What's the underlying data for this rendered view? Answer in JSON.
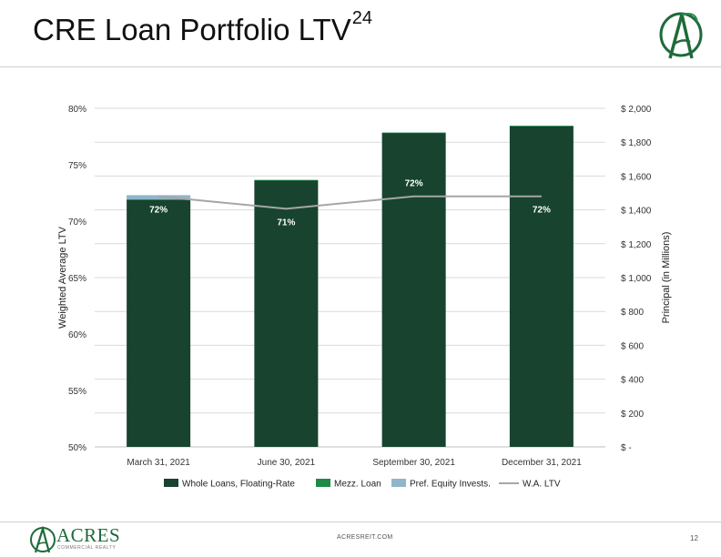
{
  "page": {
    "title": "CRE Loan Portfolio LTV",
    "title_superscript": "24",
    "footer_url": "ACRESREIT.COM",
    "page_number": "12",
    "brand_name": "ACRES",
    "brand_subtitle": "COMMERCIAL REALTY"
  },
  "colors": {
    "whole_loans": "#17432f",
    "mezz_loan": "#1f8a48",
    "pref_equity": "#8fb6c9",
    "wa_ltv": "#a6a6a6",
    "gridline": "#d9d9d9",
    "brand_green": "#1d6b3a"
  },
  "chart_data": {
    "type": "bar",
    "stacked": true,
    "categories": [
      "March 31, 2021",
      "June 30, 2021",
      "September 30, 2021",
      "December 31, 2021"
    ],
    "series": [
      {
        "name": "Whole Loans, Floating-Rate",
        "axis": "right",
        "values": [
          1460,
          1575,
          1855,
          1895
        ]
      },
      {
        "name": "Mezz. Loan",
        "axis": "right",
        "values": [
          2,
          2,
          2,
          2
        ]
      },
      {
        "name": "Pref. Equity Invests.",
        "axis": "right",
        "values": [
          25,
          0,
          0,
          0
        ]
      },
      {
        "name": "W.A. LTV",
        "type": "line",
        "axis": "left",
        "values": [
          72,
          71,
          72,
          72
        ]
      }
    ],
    "line_points": [
      72.2,
      71.1,
      72.2,
      72.2
    ],
    "ltv_labels": [
      "72%",
      "71%",
      "72%",
      "72%"
    ],
    "left_axis": {
      "label": "Weighted Average LTV",
      "min": 50,
      "max": 80,
      "ticks": [
        "50%",
        "55%",
        "60%",
        "65%",
        "70%",
        "75%",
        "80%"
      ]
    },
    "right_axis": {
      "label": "Principal (in Millions)",
      "min": 0,
      "max": 2000,
      "ticks": [
        "$ -",
        "$ 200",
        "$ 400",
        "$ 600",
        "$ 800",
        "$ 1,000",
        "$ 1,200",
        "$ 1,400",
        "$ 1,600",
        "$ 1,800",
        "$ 2,000"
      ]
    },
    "grid": true,
    "legend_position": "bottom"
  }
}
